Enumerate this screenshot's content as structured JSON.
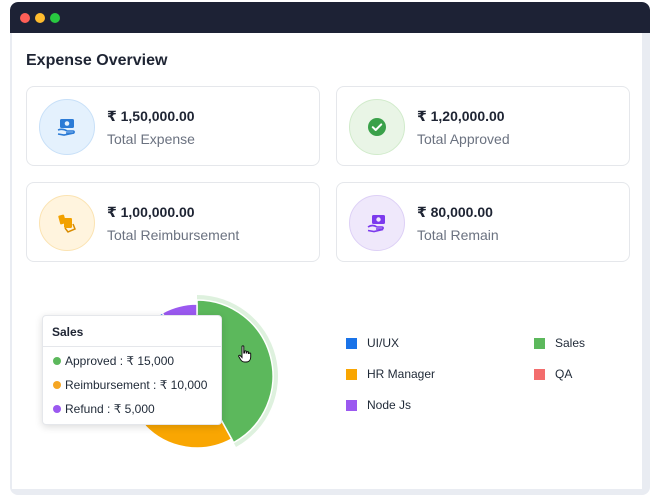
{
  "window": {
    "controls": [
      "close",
      "minimize",
      "maximize"
    ]
  },
  "page": {
    "title": "Expense Overview"
  },
  "cards": [
    {
      "amount": "₹ 1,50,000.00",
      "label": "Total Expense",
      "icon": "money-hand-icon",
      "icon_bg": "#e4f1fd",
      "icon_border": "#c8e0f8",
      "icon_color": "#2b7bd6"
    },
    {
      "amount": "₹ 1,20,000.00",
      "label": "Total Approved",
      "icon": "check-circle-icon",
      "icon_bg": "#e9f5e6",
      "icon_border": "#d1ebcb",
      "icon_color": "#3aa14a"
    },
    {
      "amount": "₹ 1,00,000.00",
      "label": "Total Reimbursement",
      "icon": "hand-money-icon",
      "icon_bg": "#fff4de",
      "icon_border": "#fbe3b2",
      "icon_color": "#f2a100"
    },
    {
      "amount": "₹ 80,000.00",
      "label": "Total Remain",
      "icon": "wallet-hand-icon",
      "icon_bg": "#efe8fb",
      "icon_border": "#ddd0f6",
      "icon_color": "#7c3aed"
    }
  ],
  "tooltip": {
    "title": "Sales",
    "rows": [
      {
        "label": "Approved : ₹ 15,000",
        "color": "#5cb85c"
      },
      {
        "label": "Reimbursement : ₹ 10,000",
        "color": "#f5a623"
      },
      {
        "label": "Refund : ₹ 5,000",
        "color": "#9b59f0"
      }
    ]
  },
  "chart_data": {
    "type": "pie",
    "series": [
      {
        "name": "UI/UX",
        "value": 22,
        "color": "#1a73e8"
      },
      {
        "name": "HR Manager",
        "value": 21,
        "color": "#f9a602"
      },
      {
        "name": "Sales",
        "value": 42,
        "color": "#5cb85c"
      },
      {
        "name": "QA",
        "value": 7,
        "color": "#f36d6d"
      },
      {
        "name": "Node Js",
        "value": 8,
        "color": "#9b59f0"
      }
    ],
    "highlighted": "Sales",
    "legend_position": "right"
  },
  "legend": [
    {
      "name": "UI/UX",
      "color": "#1a73e8"
    },
    {
      "name": "Sales",
      "color": "#5cb85c"
    },
    {
      "name": "HR Manager",
      "color": "#f9a602"
    },
    {
      "name": "QA",
      "color": "#f36d6d"
    },
    {
      "name": "Node Js",
      "color": "#9b59f0"
    }
  ],
  "cursor": "hand-pointer-icon"
}
